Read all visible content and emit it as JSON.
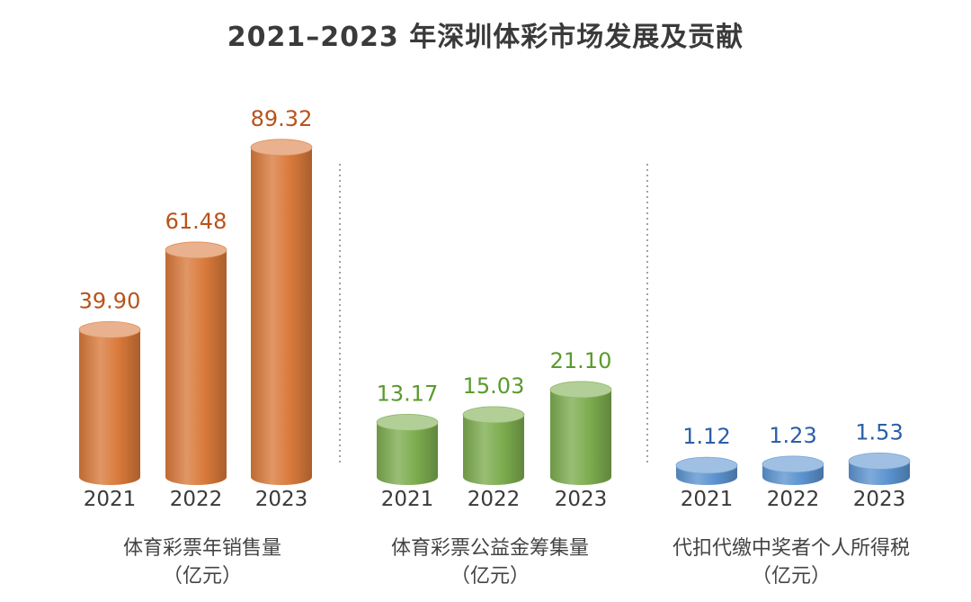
{
  "title": "2021–2023 年深圳体彩市场发展及贡献",
  "chart_data": [
    {
      "type": "bar",
      "categories": [
        "2021",
        "2022",
        "2023"
      ],
      "values": [
        39.9,
        61.48,
        89.32
      ],
      "value_labels": [
        "39.90",
        "61.48",
        "89.32"
      ],
      "label": "体育彩票年销售量",
      "unit": "（亿元）",
      "color": "#d9793a",
      "label_color": "#b7531a"
    },
    {
      "type": "bar",
      "categories": [
        "2021",
        "2022",
        "2023"
      ],
      "values": [
        13.17,
        15.03,
        21.1
      ],
      "value_labels": [
        "13.17",
        "15.03",
        "21.10"
      ],
      "label": "体育彩票公益金筹集量",
      "unit": "（亿元）",
      "color": "#7cac4e",
      "label_color": "#5a9a2e"
    },
    {
      "type": "bar",
      "categories": [
        "2021",
        "2022",
        "2023"
      ],
      "values": [
        1.12,
        1.23,
        1.53
      ],
      "value_labels": [
        "1.12",
        "1.23",
        "1.53"
      ],
      "label": "代扣代缴中奖者个人所得税",
      "unit": "（亿元）",
      "color": "#5b93cf",
      "label_color": "#2b5ea8"
    }
  ]
}
